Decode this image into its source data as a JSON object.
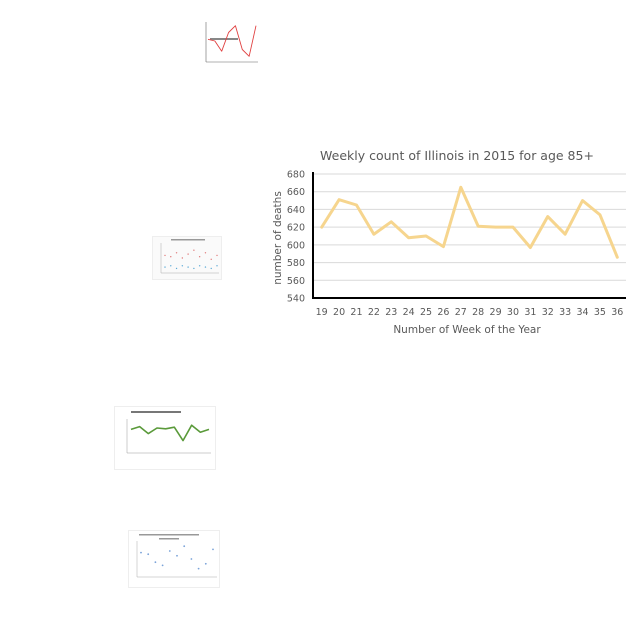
{
  "chart_data": [
    {
      "type": "line",
      "title": "Weekly count of Illinois in 2015  for age 85+",
      "xlabel": "Number of Week of the Year",
      "ylabel": "number of deaths",
      "x": [
        19,
        20,
        21,
        22,
        23,
        24,
        25,
        26,
        27,
        28,
        29,
        30,
        31,
        32,
        33,
        34,
        35,
        36
      ],
      "series": [
        {
          "values": [
            620,
            651,
            645,
            612,
            626,
            608,
            610,
            598,
            665,
            621,
            620,
            620,
            597,
            632,
            612,
            650,
            634,
            586
          ],
          "color": "#f6d58e"
        }
      ],
      "ylim": [
        540,
        680
      ],
      "yticks": [
        540,
        560,
        580,
        600,
        620,
        640,
        660,
        680
      ],
      "grid": true,
      "legend": "none"
    },
    {
      "type": "line",
      "series": [
        {
          "values": [
            0.55,
            0.5,
            0.2,
            0.75,
            0.95,
            0.25,
            0.05,
            0.95
          ],
          "color": "#e04040"
        }
      ]
    },
    {
      "type": "scatter",
      "series": [
        {
          "values": [
            0.6,
            0.55,
            0.7,
            0.5,
            0.65,
            0.8,
            0.55,
            0.7,
            0.45,
            0.6
          ],
          "color": "#e07a7a"
        },
        {
          "values": [
            0.15,
            0.2,
            0.1,
            0.2,
            0.15,
            0.1,
            0.2,
            0.15,
            0.1,
            0.2
          ],
          "color": "#5aa9d6"
        }
      ]
    },
    {
      "type": "line",
      "series": [
        {
          "values": [
            0.7,
            0.8,
            0.55,
            0.75,
            0.72,
            0.78,
            0.3,
            0.85,
            0.6,
            0.7
          ],
          "color": "#5a9a3a"
        }
      ]
    },
    {
      "type": "scatter",
      "series": [
        {
          "values": [
            0.7,
            0.65,
            0.4,
            0.3,
            0.75,
            0.6,
            0.9,
            0.5,
            0.2,
            0.35,
            0.8
          ],
          "color": "#7aa3d9"
        }
      ]
    }
  ]
}
